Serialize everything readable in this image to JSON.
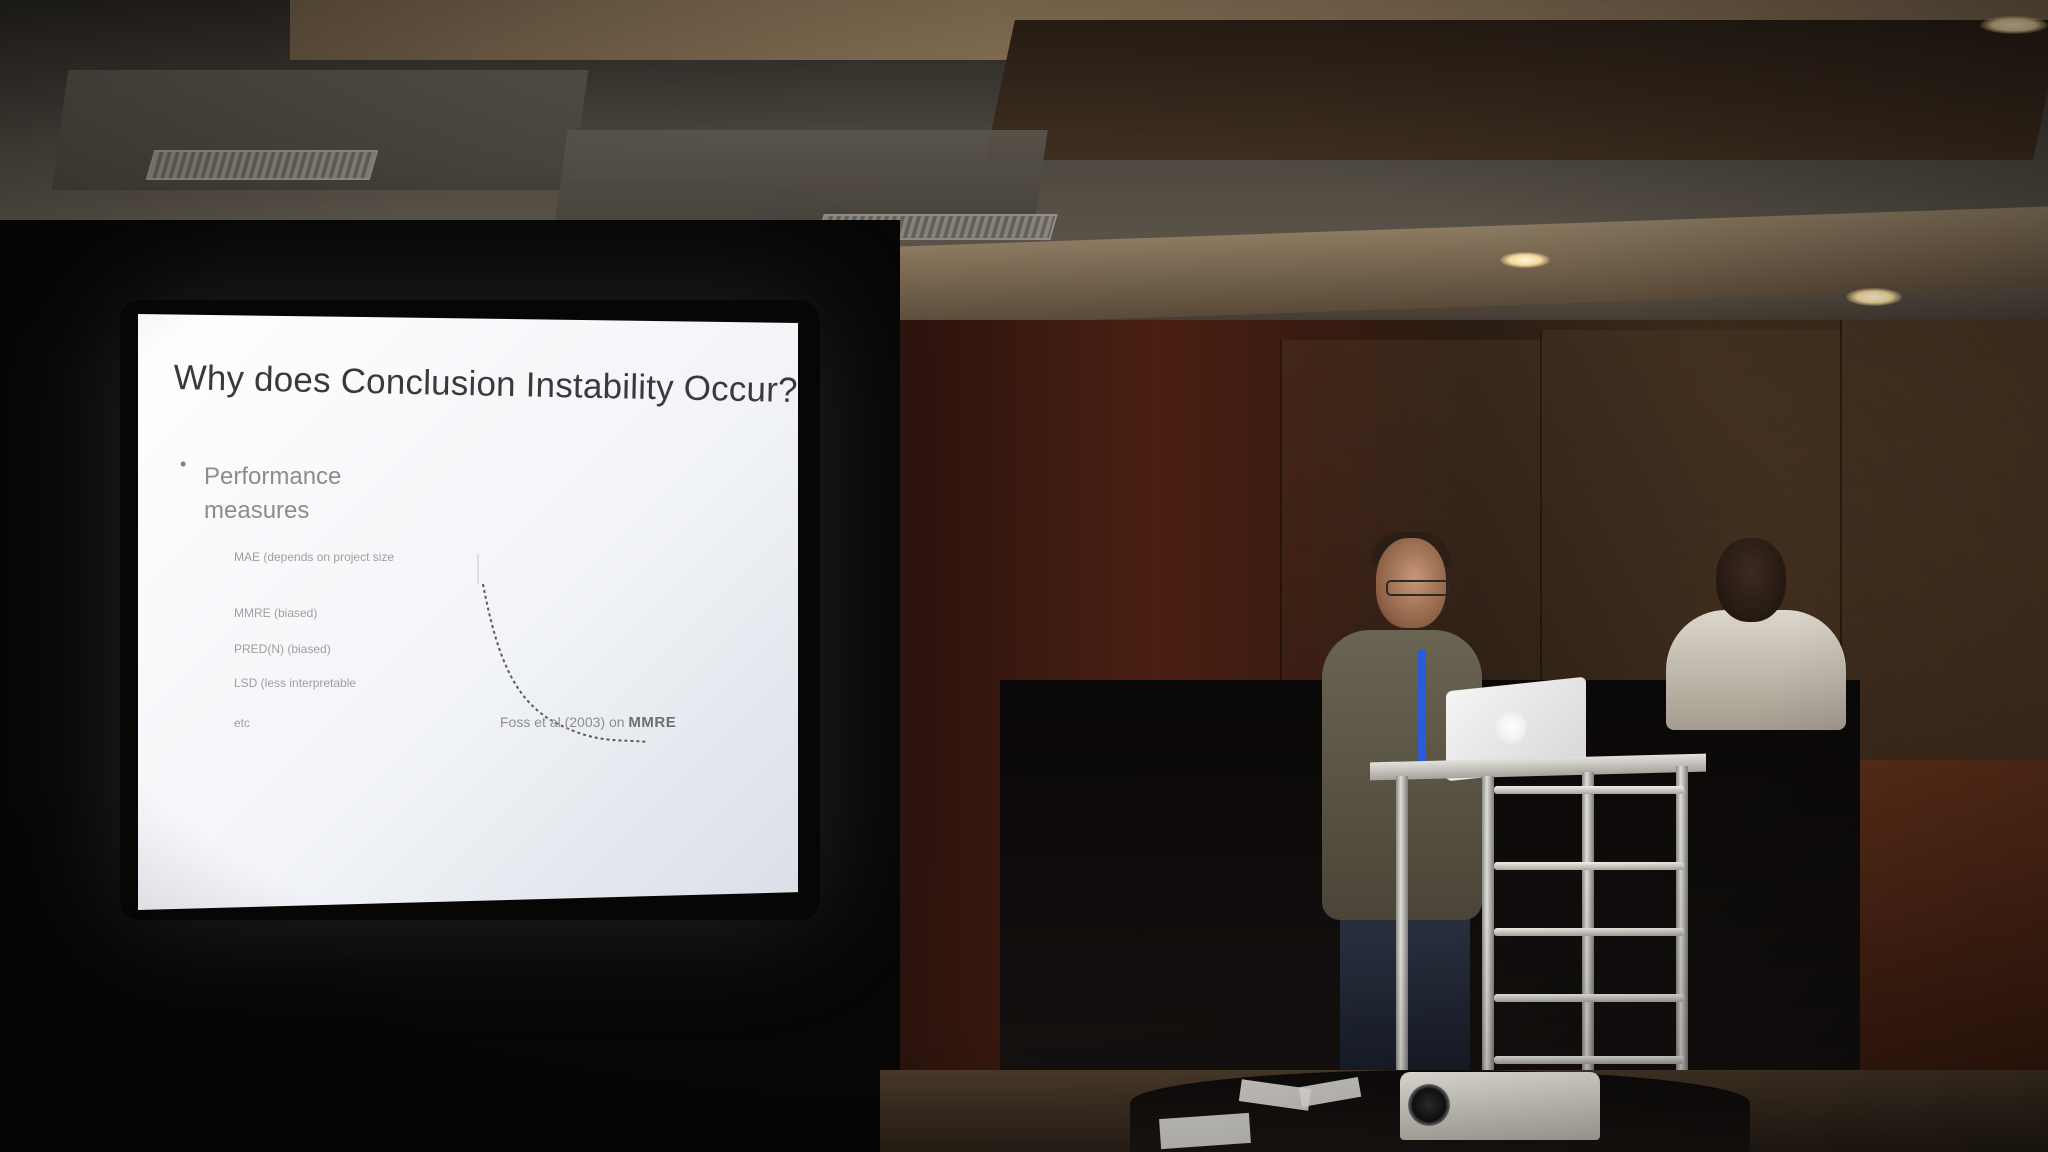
{
  "scene": {
    "type": "conference-presentation-photo",
    "colors": {
      "slide_background": "#ffffff",
      "slide_text": "#3a3a3a",
      "lanyard": "#2a5bd8",
      "wall_accent": "#4a1f12"
    }
  },
  "slide": {
    "title": "Why does Conclusion Instability Occur?",
    "bullet": "Performance measures",
    "sub_items": [
      "MAE (depends on project size",
      "MMRE (biased)",
      "PRED(N) (biased)",
      "LSD (less interpretable",
      "etc"
    ],
    "chart_caption_prefix": "Foss et al (2003) on",
    "chart_caption_emph": "MMRE"
  }
}
